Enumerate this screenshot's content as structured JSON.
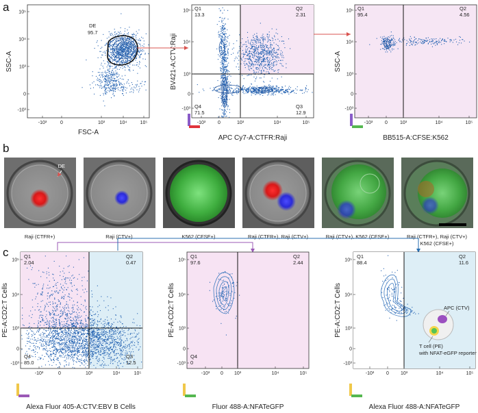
{
  "figure": {
    "panel_labels": [
      "a",
      "b",
      "c"
    ],
    "colors": {
      "q2_fill": "#f6e6f4",
      "q1_fill_c": "#f7e3f3",
      "q2_fill_c": "#ddeef6",
      "dots": "#1f5fb0",
      "contour": "#2d6db5",
      "arrow_red": "#d9534f",
      "arrow_purple": "#9b59b6",
      "arrow_blue": "#2a6fb0"
    }
  },
  "panel_a": {
    "plot1": {
      "xlabel": "FSC-A",
      "ylabel": "SSC-A",
      "gate_name": "DE",
      "gate_value": "95.7"
    },
    "plot2": {
      "xlabel": "APC Cy7-A:CTFR:Raji",
      "ylabel": "BV421-A:CTV:Raji",
      "quadrants": [
        {
          "name": "Q1",
          "value": "13.3"
        },
        {
          "name": "Q2",
          "value": "2.31"
        },
        {
          "name": "Q3",
          "value": "12.9"
        },
        {
          "name": "Q4",
          "value": "71.5"
        }
      ]
    },
    "plot3": {
      "xlabel": "BB515-A:CFSE:K562",
      "ylabel": "SSC-A",
      "quadrants": [
        {
          "name": "Q1",
          "value": "95.4"
        },
        {
          "name": "Q2",
          "value": "4.56"
        }
      ]
    }
  },
  "panel_b": {
    "annotation": "DE",
    "images": [
      {
        "caption": "Raji (CTFR+)",
        "content": "red"
      },
      {
        "caption": "Raji (CTV+)",
        "content": "blue"
      },
      {
        "caption": "K562 (CFSE+)",
        "content": "green"
      },
      {
        "caption": "Raji (CTFR+), Raji (CTV+)",
        "content": "red-blue"
      },
      {
        "caption": "Raji (CTV+), K562 (CFSE+)",
        "content": "green-blue"
      },
      {
        "caption_line1": "Raji (CTFR+), Raji (CTV+)",
        "caption_line2": "K562 (CFSE+)",
        "content": "all"
      }
    ]
  },
  "panel_c": {
    "plot1": {
      "xlabel": "Alexa Fluor 405-A:CTV:EBV B Cells",
      "ylabel": "PE-A:CD2:T Cells",
      "quadrants": [
        {
          "name": "Q1",
          "value": "2.04"
        },
        {
          "name": "Q2",
          "value": "0.47"
        },
        {
          "name": "Q3",
          "value": "12.5"
        },
        {
          "name": "Q4",
          "value": "85.0"
        }
      ]
    },
    "plot2": {
      "xlabel": "Fluor 488-A:NFATeGFP",
      "ylabel": "PE-A:CD2:T Cells",
      "quadrants": [
        {
          "name": "Q1",
          "value": "97.6"
        },
        {
          "name": "Q2",
          "value": "2.44"
        },
        {
          "name": "Q4",
          "value": "0"
        }
      ]
    },
    "plot3": {
      "xlabel": "Alexa Fluor 488-A:NFATeGFP",
      "ylabel": "PE-A:CD2:T Cells",
      "quadrants": [
        {
          "name": "Q1",
          "value": "88.4"
        },
        {
          "name": "Q2",
          "value": "11.6"
        }
      ],
      "legend_apc": "APC (CTV)",
      "legend_t1": "T cell (PE)",
      "legend_t2": "with NFAT-eGFP reporter"
    }
  },
  "axis_ticks": {
    "x_a1": [
      "-10³",
      "0",
      "10³",
      "10⁴",
      "10⁵"
    ],
    "y_a1": [
      "10⁵",
      "10⁴",
      "10³",
      "0",
      "-10³"
    ],
    "x_log": [
      "-10³",
      "0",
      "10³",
      "10⁴",
      "10⁵"
    ],
    "y_log": [
      "10⁵",
      "10⁴",
      "10³",
      "0",
      "-10³"
    ]
  }
}
